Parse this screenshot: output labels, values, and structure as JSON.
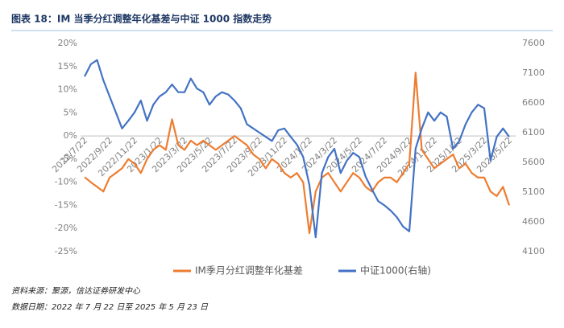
{
  "chart_data": {
    "type": "line",
    "title": "图表 18：IM 当季分红调整年化基差与中证 1000 指数走势",
    "footnotes": [
      "资料来源：聚源，信达证券研发中心",
      "数据日期：2022 年 7 月 22 日至 2025 年 5 月 23 日"
    ],
    "categories": [
      "2022/7/22",
      null,
      null,
      null,
      "2022/9/22",
      null,
      null,
      null,
      "2022/11/22",
      null,
      null,
      null,
      "2023/1/22",
      null,
      null,
      null,
      "2023/3/22",
      null,
      null,
      null,
      "2023/5/22",
      null,
      null,
      null,
      "2023/7/22",
      null,
      null,
      null,
      "2023/9/22",
      null,
      null,
      null,
      "2023/11/22",
      null,
      null,
      null,
      "2024/1/22",
      null,
      null,
      null,
      "2024/3/22",
      null,
      null,
      null,
      "2024/5/22",
      null,
      null,
      null,
      "2024/7/22",
      null,
      null,
      null,
      "2024/9/22",
      null,
      null,
      null,
      "2024/11/22",
      null,
      null,
      null,
      "2025/1/22",
      null,
      null,
      null,
      "2025/3/22",
      null,
      null,
      null,
      "2025/5/22"
    ],
    "series": [
      {
        "name": "IM季月分红调整年化基差",
        "color": "#ed7d31",
        "values": [
          -8.9,
          -10,
          -11,
          -12,
          -9,
          -8,
          -7,
          -5,
          -6,
          -8,
          -5,
          -3,
          -2,
          -3,
          3.6,
          -2,
          -3,
          -1,
          -2,
          -1,
          -2,
          -3,
          -2,
          -1,
          0,
          -1,
          -2,
          -4,
          -5,
          -7,
          -5,
          -6,
          -8,
          -9,
          -8,
          -10,
          -21,
          -12,
          -9,
          -8,
          -10,
          -12,
          -10,
          -8,
          -9,
          -11,
          -12,
          -10,
          -9,
          -9,
          -10,
          -8,
          -6,
          13.7,
          -3,
          -5,
          -7,
          -6,
          -5,
          -4,
          -7,
          -6,
          -8,
          -9,
          -9,
          -12,
          -13,
          -11,
          -15
        ]
      },
      {
        "name": "中证1000(右轴)",
        "color": "#4472c4",
        "axis": "y2",
        "values": [
          7045,
          7250,
          7320,
          6980,
          6710,
          6440,
          6170,
          6300,
          6440,
          6640,
          6300,
          6570,
          6710,
          6780,
          6910,
          6780,
          6780,
          7010,
          6840,
          6780,
          6570,
          6710,
          6780,
          6740,
          6640,
          6510,
          6240,
          6170,
          6100,
          6030,
          5960,
          6140,
          6170,
          6030,
          5900,
          5690,
          5220,
          4340,
          5420,
          5690,
          5830,
          5420,
          5630,
          5760,
          5690,
          5360,
          5150,
          4950,
          4880,
          4790,
          4680,
          4520,
          4440,
          5830,
          6170,
          6440,
          6300,
          6440,
          6370,
          5830,
          5960,
          6240,
          6440,
          6570,
          6510,
          5630,
          6030,
          6170,
          6030
        ]
      }
    ],
    "ylim": [
      -25,
      20
    ],
    "yticks": [
      {
        "value": -25,
        "label": "-25%"
      },
      {
        "value": -20,
        "label": "-20%"
      },
      {
        "value": -15,
        "label": "-15%"
      },
      {
        "value": -10,
        "label": "-10%"
      },
      {
        "value": -5,
        "label": "-5%"
      },
      {
        "value": 0,
        "label": "0%"
      },
      {
        "value": 5,
        "label": "5%"
      },
      {
        "value": 10,
        "label": "10%"
      },
      {
        "value": 15,
        "label": "15%"
      },
      {
        "value": 20,
        "label": "20%"
      }
    ],
    "y2lim": [
      4100,
      7600
    ],
    "y2ticks": [
      4100,
      4600,
      5100,
      5600,
      6100,
      6600,
      7100,
      7600
    ],
    "grid": false,
    "legend": "bottom"
  }
}
